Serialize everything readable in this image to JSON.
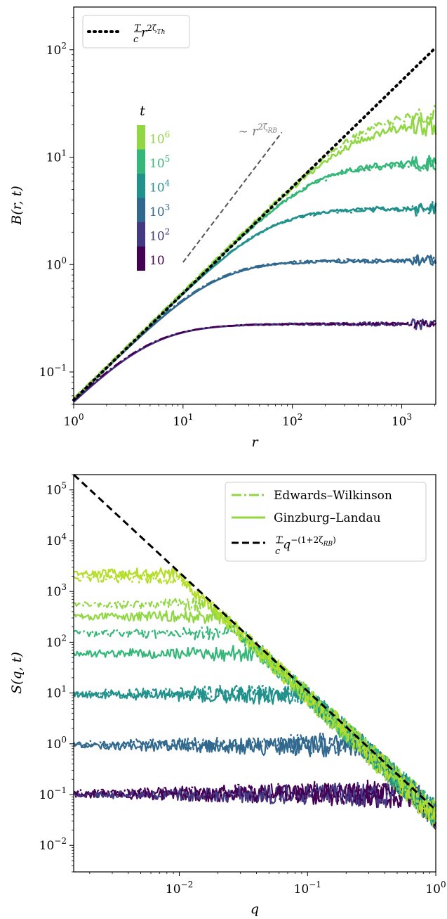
{
  "chart_data": [
    {
      "type": "line",
      "xlabel": "r",
      "ylabel": "B(r, t)",
      "xscale": "log",
      "yscale": "log",
      "xlim": [
        1,
        2048
      ],
      "ylim": [
        0.05,
        250
      ],
      "xtick_labels": [
        "10^0",
        "10^1",
        "10^2",
        "10^3"
      ],
      "ytick_labels": [
        "10^-1",
        "10^0",
        "10^1",
        "10^2"
      ],
      "grid": false,
      "legend": {
        "position": "top-left",
        "entries": [
          {
            "label": "T/c r^{2ζ_Th}",
            "style": "dotted",
            "color": "#000000"
          }
        ]
      },
      "reference_line": {
        "style": "dotted",
        "color": "#000000",
        "x": [
          1,
          2048
        ],
        "y": [
          0.055,
          105
        ]
      },
      "guide_line": {
        "label": "~ r^{2ζ_RB}",
        "style": "dashed",
        "color": "#555555",
        "x": [
          10,
          80
        ],
        "y": [
          1.05,
          17
        ]
      },
      "colorbar": {
        "title": "t",
        "entries": [
          {
            "label": "10",
            "color": "#440154"
          },
          {
            "label": "10^2",
            "color": "#443983"
          },
          {
            "label": "10^3",
            "color": "#31688e"
          },
          {
            "label": "10^4",
            "color": "#21918c"
          },
          {
            "label": "10^5",
            "color": "#35b779"
          },
          {
            "label": "10^6",
            "color": "#90d743"
          }
        ]
      },
      "series": [
        {
          "t": "10",
          "color": "#440154",
          "kind": "solid",
          "sat": 0.28,
          "rc": 8,
          "amp": 0.03,
          "rmax": 1000
        },
        {
          "t": "10^2",
          "color": "#443983",
          "kind": "solid",
          "sat": 0.28,
          "rc": 8,
          "amp": 0.04,
          "rmax": 2048
        },
        {
          "t": "10^3",
          "color": "#31688e",
          "kind": "solid",
          "sat": 1.08,
          "rc": 22,
          "amp": 0.04,
          "rmax": 2048
        },
        {
          "t": "10^4",
          "color": "#21918c",
          "kind": "solid",
          "sat": 3.35,
          "rc": 55,
          "amp": 0.05,
          "rmax": 2048
        },
        {
          "t": "10^5",
          "color": "#35b779",
          "kind": "solid",
          "sat": 8.9,
          "rc": 130,
          "amp": 0.06,
          "rmax": 2048
        },
        {
          "t": "10^6",
          "color": "#90d743",
          "kind": "solid",
          "sat": 21,
          "rc": 260,
          "amp": 0.08,
          "rmax": 2048
        },
        {
          "t": "10",
          "color": "#440154",
          "kind": "dashdot",
          "sat": 0.28,
          "rc": 8,
          "amp": 0.03,
          "rmax": 2048
        },
        {
          "t": "10^3",
          "color": "#31688e",
          "kind": "dashdot",
          "sat": 1.1,
          "rc": 23,
          "amp": 0.04,
          "rmax": 2048
        },
        {
          "t": "10^4",
          "color": "#21918c",
          "kind": "dashdot",
          "sat": 3.3,
          "rc": 58,
          "amp": 0.05,
          "rmax": 2048
        },
        {
          "t": "10^5",
          "color": "#35b779",
          "kind": "dashdot",
          "sat": 8.6,
          "rc": 150,
          "amp": 0.06,
          "rmax": 2048
        },
        {
          "t": "10^6",
          "color": "#90d743",
          "kind": "dashdot",
          "sat": 27,
          "rc": 320,
          "amp": 0.08,
          "rmax": 2048
        }
      ]
    },
    {
      "type": "line",
      "xlabel": "q",
      "ylabel": "S(q, t)",
      "xscale": "log",
      "yscale": "log",
      "xlim": [
        0.0015,
        1.0
      ],
      "ylim": [
        0.003,
        200000
      ],
      "xtick_labels": [
        "10^-2",
        "10^-1",
        "10^0"
      ],
      "ytick_labels": [
        "10^-2",
        "10^-1",
        "10^0",
        "10^1",
        "10^2",
        "10^3",
        "10^4",
        "10^5"
      ],
      "grid": false,
      "legend": {
        "position": "top-right",
        "entries": [
          {
            "label": "Edwards–Wilkinson",
            "style": "dashdot",
            "color": "#90d743"
          },
          {
            "label": "Ginzburg–Landau",
            "style": "solid",
            "color": "#90d743"
          },
          {
            "label": "T/c q^{-(1+2ζ_RB)}",
            "style": "dashed",
            "color": "#000000"
          }
        ]
      },
      "reference_line": {
        "style": "dashed",
        "color": "#000000",
        "x": [
          0.0015,
          1.0
        ],
        "y": [
          200000,
          0.05
        ]
      },
      "series": [
        {
          "t": "10",
          "color": "#440154",
          "kind": "solid",
          "plateau": 0.1
        },
        {
          "t": "10^2",
          "color": "#443983",
          "kind": "solid",
          "plateau": 0.1
        },
        {
          "t": "10^3",
          "color": "#31688e",
          "kind": "solid",
          "plateau": 0.9
        },
        {
          "t": "10^4",
          "color": "#21918c",
          "kind": "solid",
          "plateau": 9
        },
        {
          "t": "10^5",
          "color": "#35b779",
          "kind": "solid",
          "plateau": 60
        },
        {
          "t": "10^6",
          "color": "#90d743",
          "kind": "solid",
          "plateau": 320
        },
        {
          "t": "10^6b",
          "color": "#b5de2b",
          "kind": "solid",
          "plateau": 2300
        },
        {
          "t": "10",
          "color": "#440154",
          "kind": "dashdot",
          "plateau": 0.11
        },
        {
          "t": "10^3",
          "color": "#31688e",
          "kind": "dashdot",
          "plateau": 1.0
        },
        {
          "t": "10^4",
          "color": "#21918c",
          "kind": "dashdot",
          "plateau": 10
        },
        {
          "t": "10^5",
          "color": "#35b779",
          "kind": "dashdot",
          "plateau": 150
        },
        {
          "t": "10^6",
          "color": "#90d743",
          "kind": "dashdot",
          "plateau": 550
        },
        {
          "t": "10^6b",
          "color": "#b5de2b",
          "kind": "dashdot",
          "plateau": 1800
        }
      ]
    }
  ]
}
